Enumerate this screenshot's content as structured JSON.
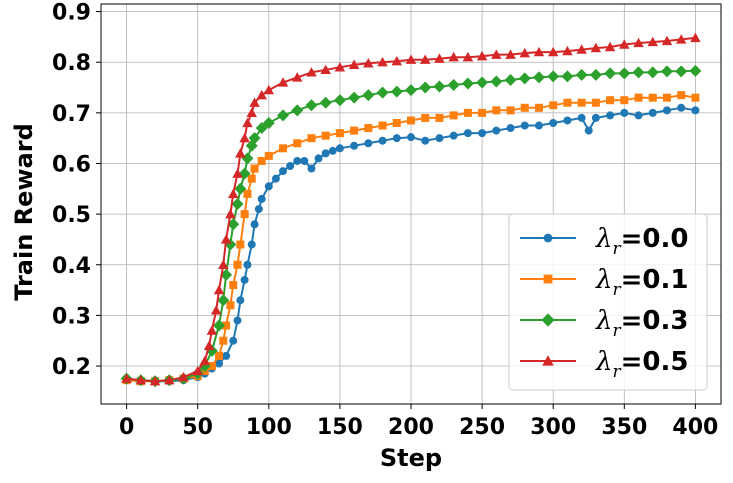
{
  "chart_data": {
    "type": "line",
    "xlabel": "Step",
    "ylabel": "Train Reward",
    "xlim": [
      -18,
      418
    ],
    "ylim": [
      0.125,
      0.915
    ],
    "xticks": [
      0,
      50,
      100,
      150,
      200,
      250,
      300,
      350,
      400
    ],
    "xtick_labels": [
      "0",
      "50",
      "100",
      "150",
      "200",
      "250",
      "300",
      "350",
      "400"
    ],
    "yticks": [
      0.2,
      0.3,
      0.4,
      0.5,
      0.6,
      0.7,
      0.8,
      0.9
    ],
    "ytick_labels": [
      "0.2",
      "0.3",
      "0.4",
      "0.5",
      "0.6",
      "0.7",
      "0.8",
      "0.9"
    ],
    "grid": true,
    "legend_position": "bottom-right",
    "series": [
      {
        "name": "λr=0.0",
        "legend_symbol": "λ",
        "legend_sub": "r",
        "legend_value": "=0.0",
        "color": "#1f77b4",
        "marker": "circle",
        "points": [
          [
            0,
            0.175
          ],
          [
            10,
            0.172
          ],
          [
            20,
            0.17
          ],
          [
            30,
            0.17
          ],
          [
            40,
            0.172
          ],
          [
            50,
            0.178
          ],
          [
            55,
            0.185
          ],
          [
            60,
            0.195
          ],
          [
            65,
            0.205
          ],
          [
            70,
            0.22
          ],
          [
            75,
            0.25
          ],
          [
            78,
            0.29
          ],
          [
            80,
            0.33
          ],
          [
            83,
            0.37
          ],
          [
            85,
            0.4
          ],
          [
            88,
            0.44
          ],
          [
            90,
            0.48
          ],
          [
            93,
            0.51
          ],
          [
            95,
            0.53
          ],
          [
            100,
            0.555
          ],
          [
            105,
            0.57
          ],
          [
            110,
            0.585
          ],
          [
            115,
            0.595
          ],
          [
            120,
            0.605
          ],
          [
            125,
            0.605
          ],
          [
            130,
            0.59
          ],
          [
            135,
            0.61
          ],
          [
            140,
            0.62
          ],
          [
            145,
            0.625
          ],
          [
            150,
            0.63
          ],
          [
            160,
            0.635
          ],
          [
            170,
            0.64
          ],
          [
            180,
            0.645
          ],
          [
            190,
            0.65
          ],
          [
            200,
            0.652
          ],
          [
            210,
            0.645
          ],
          [
            220,
            0.65
          ],
          [
            230,
            0.655
          ],
          [
            240,
            0.66
          ],
          [
            250,
            0.66
          ],
          [
            260,
            0.665
          ],
          [
            270,
            0.67
          ],
          [
            280,
            0.675
          ],
          [
            290,
            0.675
          ],
          [
            300,
            0.68
          ],
          [
            310,
            0.685
          ],
          [
            320,
            0.69
          ],
          [
            325,
            0.665
          ],
          [
            330,
            0.69
          ],
          [
            340,
            0.695
          ],
          [
            350,
            0.7
          ],
          [
            360,
            0.695
          ],
          [
            370,
            0.7
          ],
          [
            380,
            0.705
          ],
          [
            390,
            0.71
          ],
          [
            400,
            0.705
          ]
        ]
      },
      {
        "name": "λr=0.1",
        "legend_symbol": "λ",
        "legend_sub": "r",
        "legend_value": "=0.1",
        "color": "#ff7f0e",
        "marker": "square",
        "points": [
          [
            0,
            0.172
          ],
          [
            10,
            0.17
          ],
          [
            20,
            0.17
          ],
          [
            30,
            0.172
          ],
          [
            40,
            0.175
          ],
          [
            50,
            0.18
          ],
          [
            55,
            0.19
          ],
          [
            60,
            0.2
          ],
          [
            65,
            0.22
          ],
          [
            68,
            0.25
          ],
          [
            70,
            0.28
          ],
          [
            73,
            0.32
          ],
          [
            75,
            0.36
          ],
          [
            78,
            0.4
          ],
          [
            80,
            0.44
          ],
          [
            83,
            0.5
          ],
          [
            85,
            0.54
          ],
          [
            88,
            0.57
          ],
          [
            90,
            0.59
          ],
          [
            95,
            0.605
          ],
          [
            100,
            0.615
          ],
          [
            110,
            0.63
          ],
          [
            120,
            0.64
          ],
          [
            130,
            0.65
          ],
          [
            140,
            0.655
          ],
          [
            150,
            0.66
          ],
          [
            160,
            0.665
          ],
          [
            170,
            0.67
          ],
          [
            180,
            0.675
          ],
          [
            190,
            0.68
          ],
          [
            200,
            0.685
          ],
          [
            210,
            0.69
          ],
          [
            220,
            0.69
          ],
          [
            230,
            0.695
          ],
          [
            240,
            0.7
          ],
          [
            250,
            0.7
          ],
          [
            260,
            0.705
          ],
          [
            270,
            0.705
          ],
          [
            280,
            0.71
          ],
          [
            290,
            0.71
          ],
          [
            300,
            0.715
          ],
          [
            310,
            0.72
          ],
          [
            320,
            0.72
          ],
          [
            330,
            0.72
          ],
          [
            340,
            0.725
          ],
          [
            350,
            0.725
          ],
          [
            360,
            0.73
          ],
          [
            370,
            0.73
          ],
          [
            380,
            0.73
          ],
          [
            390,
            0.735
          ],
          [
            400,
            0.73
          ]
        ]
      },
      {
        "name": "λr=0.3",
        "legend_symbol": "λ",
        "legend_sub": "r",
        "legend_value": "=0.3",
        "color": "#2ca02c",
        "marker": "diamond",
        "points": [
          [
            0,
            0.175
          ],
          [
            10,
            0.172
          ],
          [
            20,
            0.17
          ],
          [
            30,
            0.172
          ],
          [
            40,
            0.175
          ],
          [
            50,
            0.185
          ],
          [
            55,
            0.2
          ],
          [
            60,
            0.23
          ],
          [
            65,
            0.28
          ],
          [
            68,
            0.33
          ],
          [
            70,
            0.38
          ],
          [
            73,
            0.44
          ],
          [
            75,
            0.48
          ],
          [
            78,
            0.52
          ],
          [
            80,
            0.55
          ],
          [
            83,
            0.58
          ],
          [
            85,
            0.61
          ],
          [
            88,
            0.635
          ],
          [
            90,
            0.65
          ],
          [
            95,
            0.67
          ],
          [
            100,
            0.68
          ],
          [
            110,
            0.695
          ],
          [
            120,
            0.705
          ],
          [
            130,
            0.715
          ],
          [
            140,
            0.72
          ],
          [
            150,
            0.725
          ],
          [
            160,
            0.73
          ],
          [
            170,
            0.735
          ],
          [
            180,
            0.74
          ],
          [
            190,
            0.742
          ],
          [
            200,
            0.745
          ],
          [
            210,
            0.75
          ],
          [
            220,
            0.752
          ],
          [
            230,
            0.755
          ],
          [
            240,
            0.758
          ],
          [
            250,
            0.76
          ],
          [
            260,
            0.762
          ],
          [
            270,
            0.765
          ],
          [
            280,
            0.768
          ],
          [
            290,
            0.77
          ],
          [
            300,
            0.772
          ],
          [
            310,
            0.772
          ],
          [
            320,
            0.775
          ],
          [
            330,
            0.775
          ],
          [
            340,
            0.778
          ],
          [
            350,
            0.778
          ],
          [
            360,
            0.78
          ],
          [
            370,
            0.78
          ],
          [
            380,
            0.782
          ],
          [
            390,
            0.782
          ],
          [
            400,
            0.783
          ]
        ]
      },
      {
        "name": "λr=0.5",
        "legend_symbol": "λ",
        "legend_sub": "r",
        "legend_value": "=0.5",
        "color": "#d62728",
        "marker": "triangle",
        "points": [
          [
            0,
            0.175
          ],
          [
            10,
            0.172
          ],
          [
            20,
            0.17
          ],
          [
            30,
            0.172
          ],
          [
            40,
            0.178
          ],
          [
            50,
            0.19
          ],
          [
            55,
            0.21
          ],
          [
            58,
            0.24
          ],
          [
            60,
            0.27
          ],
          [
            63,
            0.31
          ],
          [
            65,
            0.35
          ],
          [
            68,
            0.4
          ],
          [
            70,
            0.45
          ],
          [
            73,
            0.5
          ],
          [
            75,
            0.54
          ],
          [
            78,
            0.58
          ],
          [
            80,
            0.62
          ],
          [
            83,
            0.65
          ],
          [
            85,
            0.68
          ],
          [
            88,
            0.7
          ],
          [
            90,
            0.72
          ],
          [
            95,
            0.735
          ],
          [
            100,
            0.745
          ],
          [
            110,
            0.76
          ],
          [
            120,
            0.77
          ],
          [
            130,
            0.78
          ],
          [
            140,
            0.785
          ],
          [
            150,
            0.79
          ],
          [
            160,
            0.795
          ],
          [
            170,
            0.798
          ],
          [
            180,
            0.8
          ],
          [
            190,
            0.802
          ],
          [
            200,
            0.805
          ],
          [
            210,
            0.805
          ],
          [
            220,
            0.807
          ],
          [
            230,
            0.81
          ],
          [
            240,
            0.81
          ],
          [
            250,
            0.812
          ],
          [
            260,
            0.815
          ],
          [
            270,
            0.815
          ],
          [
            280,
            0.818
          ],
          [
            290,
            0.82
          ],
          [
            300,
            0.82
          ],
          [
            310,
            0.822
          ],
          [
            320,
            0.825
          ],
          [
            330,
            0.828
          ],
          [
            340,
            0.83
          ],
          [
            350,
            0.835
          ],
          [
            360,
            0.838
          ],
          [
            370,
            0.84
          ],
          [
            380,
            0.842
          ],
          [
            390,
            0.845
          ],
          [
            400,
            0.848
          ]
        ]
      }
    ]
  }
}
